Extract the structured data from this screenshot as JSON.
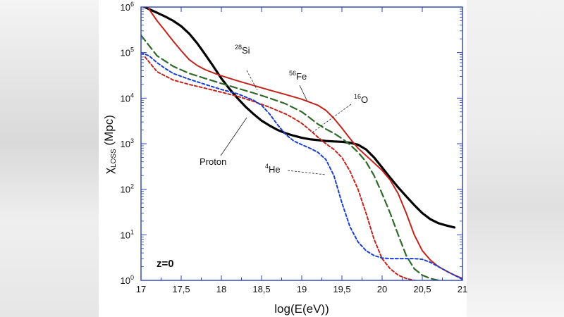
{
  "chart_data": {
    "type": "line",
    "title": "",
    "xlabel": "log(E(eV))",
    "ylabel_main": "χ",
    "ylabel_sub": "LOSS",
    "ylabel_unit": " (Mpc)",
    "xlim": [
      17,
      21
    ],
    "ylim_log10": [
      0,
      6
    ],
    "x_ticks": [
      "17",
      "17,5",
      "18",
      "18,5",
      "19",
      "19,5",
      "20",
      "20,5",
      "21"
    ],
    "y_ticks": [
      {
        "base": "10",
        "exp": "0"
      },
      {
        "base": "10",
        "exp": "1"
      },
      {
        "base": "10",
        "exp": "2"
      },
      {
        "base": "10",
        "exp": "3"
      },
      {
        "base": "10",
        "exp": "4"
      },
      {
        "base": "10",
        "exp": "5"
      },
      {
        "base": "10",
        "exp": "6"
      }
    ],
    "annotation": "z=0",
    "series": [
      {
        "name": "Proton",
        "mass": "",
        "symbol": "Proton",
        "color": "#000000",
        "style": "solid",
        "x": [
          17.0,
          17.1,
          17.2,
          17.3,
          17.4,
          17.5,
          17.6,
          17.7,
          17.8,
          17.9,
          18.0,
          18.1,
          18.2,
          18.3,
          18.4,
          18.5,
          18.6,
          18.7,
          18.8,
          18.9,
          19.0,
          19.1,
          19.2,
          19.3,
          19.4,
          19.5,
          19.6,
          19.7,
          19.8,
          19.9,
          20.0,
          20.1,
          20.2,
          20.3,
          20.4,
          20.5,
          20.6,
          20.7,
          20.8,
          20.9
        ],
        "y": [
          1100000,
          900000,
          750000,
          620000,
          500000,
          380000,
          260000,
          160000,
          90000,
          50000,
          27000,
          16000,
          10000,
          6500,
          4500,
          3200,
          2500,
          2000,
          1700,
          1500,
          1350,
          1250,
          1200,
          1150,
          1120,
          1100,
          1050,
          950,
          750,
          500,
          300,
          180,
          110,
          70,
          45,
          30,
          22,
          18,
          16,
          14.5
        ]
      },
      {
        "name": "56Fe",
        "mass": "56",
        "symbol": "Fe",
        "color": "#c0241c",
        "style": "solid",
        "x": [
          17.0,
          17.1,
          17.2,
          17.3,
          17.4,
          17.5,
          17.6,
          17.7,
          17.8,
          17.9,
          18.0,
          18.2,
          18.4,
          18.6,
          18.8,
          19.0,
          19.2,
          19.3,
          19.4,
          19.5,
          19.6,
          19.7,
          19.8,
          19.9,
          20.0,
          20.1,
          20.2,
          20.3,
          20.4,
          20.5,
          20.6,
          20.7,
          20.8,
          20.9,
          21.0
        ],
        "y": [
          2000000,
          900000,
          500000,
          300000,
          180000,
          110000,
          70000,
          52000,
          42000,
          36000,
          31000,
          24000,
          19000,
          15000,
          12000,
          9500,
          7000,
          5400,
          3600,
          2200,
          1300,
          800,
          550,
          380,
          260,
          160,
          80,
          30,
          10,
          4.5,
          2.8,
          2.0,
          1.6,
          1.3,
          1.1
        ]
      },
      {
        "name": "28Si",
        "mass": "28",
        "symbol": "Si",
        "color": "#2f6a2a",
        "style": "dashed",
        "x": [
          17.0,
          17.2,
          17.4,
          17.6,
          17.8,
          18.0,
          18.2,
          18.4,
          18.6,
          18.8,
          19.0,
          19.1,
          19.2,
          19.3,
          19.4,
          19.5,
          19.6,
          19.7,
          19.8,
          19.9,
          20.0,
          20.1,
          20.2,
          20.3,
          20.4,
          20.5,
          20.6,
          20.7,
          20.8,
          20.9,
          21.0
        ],
        "y": [
          240000,
          85000,
          50000,
          35000,
          27000,
          21000,
          16500,
          13000,
          10000,
          7500,
          5000,
          3700,
          2700,
          2100,
          1700,
          1300,
          950,
          650,
          400,
          200,
          80,
          30,
          10,
          3.5,
          1.8,
          1.3,
          1.1,
          1.0,
          0.95,
          0.9,
          0.85
        ]
      },
      {
        "name": "16O",
        "mass": "16",
        "symbol": "O",
        "color": "#c0241c",
        "style": "dotted",
        "x": [
          17.05,
          17.2,
          17.4,
          17.6,
          17.8,
          18.0,
          18.2,
          18.4,
          18.6,
          18.8,
          18.9,
          19.0,
          19.1,
          19.2,
          19.3,
          19.4,
          19.5,
          19.6,
          19.7,
          19.8,
          19.9,
          20.0,
          20.1,
          20.2,
          20.3,
          20.4,
          20.5,
          20.6,
          20.7,
          20.8,
          20.9
        ],
        "y": [
          80000,
          38000,
          25000,
          20000,
          16500,
          13500,
          11000,
          8500,
          6300,
          4500,
          3600,
          2800,
          2000,
          1400,
          1000,
          750,
          500,
          250,
          100,
          30,
          8,
          3,
          1.8,
          1.3,
          1.1,
          1.0,
          0.95,
          0.9,
          0.88,
          0.86,
          0.85
        ]
      },
      {
        "name": "4He",
        "mass": "4",
        "symbol": "He",
        "color": "#1a3fcf",
        "style": "dotted",
        "x": [
          17.0,
          17.1,
          17.2,
          17.3,
          17.4,
          17.6,
          17.8,
          18.0,
          18.2,
          18.4,
          18.5,
          18.6,
          18.7,
          18.8,
          18.9,
          19.0,
          19.1,
          19.2,
          19.3,
          19.4,
          19.5,
          19.6,
          19.7,
          19.8,
          19.9,
          20.0,
          20.1,
          20.2,
          20.3,
          20.4,
          20.5,
          20.6,
          20.7,
          20.8,
          20.9,
          21.0
        ],
        "y": [
          100000,
          85000,
          60000,
          45000,
          35000,
          26000,
          20000,
          15500,
          12500,
          9000,
          7000,
          4500,
          2600,
          1600,
          1150,
          950,
          800,
          650,
          450,
          200,
          50,
          15,
          7,
          4.5,
          3.5,
          3.1,
          3.0,
          3.0,
          3.0,
          3.0,
          2.9,
          2.5,
          2.0,
          1.6,
          1.3,
          1.05
        ]
      }
    ],
    "labels": {
      "si": {
        "mass": "28",
        "symbol": "Si"
      },
      "fe": {
        "mass": "56",
        "symbol": "Fe"
      },
      "o": {
        "mass": "16",
        "symbol": "O"
      },
      "he": {
        "mass": "4",
        "symbol": "He"
      },
      "proton": "Proton"
    }
  }
}
